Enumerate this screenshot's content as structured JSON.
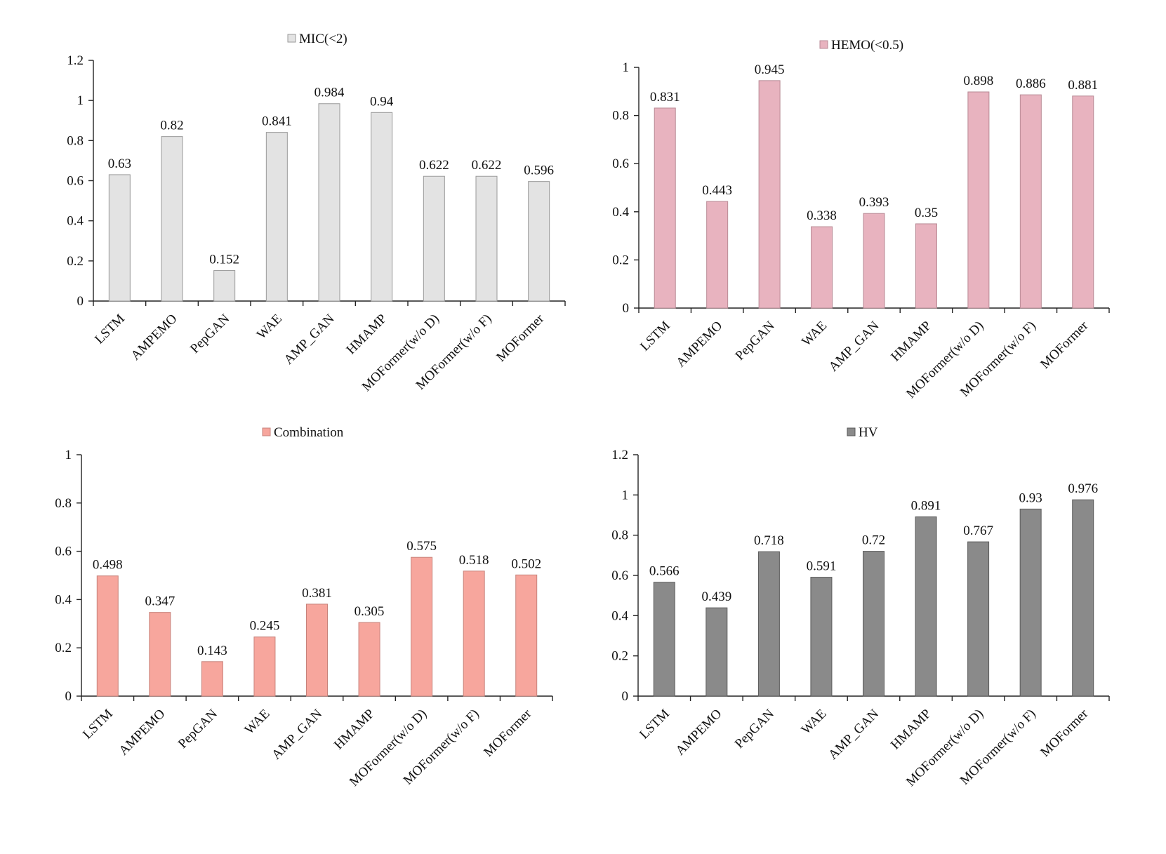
{
  "chart_data": [
    {
      "type": "bar",
      "title": "",
      "legend": "MIC(<2)",
      "legend_placement": "top-center",
      "color": "#e3e3e3",
      "edge_color": "#9a9a9a",
      "categories": [
        "LSTM",
        "AMPEMO",
        "PepGAN",
        "WAE",
        "AMP_GAN",
        "HMAMP",
        "MOFormer(w/o D)",
        "MOFormer(w/o F)",
        "MOFormer"
      ],
      "values": [
        0.63,
        0.82,
        0.152,
        0.841,
        0.984,
        0.94,
        0.622,
        0.622,
        0.596
      ],
      "value_labels": [
        "0.63",
        "0.82",
        "0.152",
        "0.841",
        "0.984",
        "0.94",
        "0.622",
        "0.622",
        "0.596"
      ],
      "ylim": [
        0,
        1.2
      ],
      "yticks": [
        "0",
        "0.2",
        "0.4",
        "0.6",
        "0.8",
        "1",
        "1.2"
      ],
      "xlabel": "",
      "ylabel": "",
      "grid": false
    },
    {
      "type": "bar",
      "title": "",
      "legend": "HEMO(<0.5)",
      "legend_placement": "top-center",
      "color": "#e8b3bf",
      "edge_color": "#b88a95",
      "categories": [
        "LSTM",
        "AMPEMO",
        "PepGAN",
        "WAE",
        "AMP_GAN",
        "HMAMP",
        "MOFormer(w/o D)",
        "MOFormer(w/o F)",
        "MOFormer"
      ],
      "values": [
        0.831,
        0.443,
        0.945,
        0.338,
        0.393,
        0.35,
        0.898,
        0.886,
        0.881
      ],
      "value_labels": [
        "0.831",
        "0.443",
        "0.945",
        "0.338",
        "0.393",
        "0.35",
        "0.898",
        "0.886",
        "0.881"
      ],
      "ylim": [
        0,
        1
      ],
      "yticks": [
        "0",
        "0.2",
        "0.4",
        "0.6",
        "0.8",
        "1"
      ],
      "xlabel": "",
      "ylabel": "",
      "grid": false
    },
    {
      "type": "bar",
      "title": "",
      "legend": "Combination",
      "legend_placement": "top-center",
      "color": "#f7a69d",
      "edge_color": "#c7837b",
      "categories": [
        "LSTM",
        "AMPEMO",
        "PepGAN",
        "WAE",
        "AMP_GAN",
        "HMAMP",
        "MOFormer(w/o D)",
        "MOFormer(w/o F)",
        "MOFormer"
      ],
      "values": [
        0.498,
        0.347,
        0.143,
        0.245,
        0.381,
        0.305,
        0.575,
        0.518,
        0.502
      ],
      "value_labels": [
        "0.498",
        "0.347",
        "0.143",
        "0.245",
        "0.381",
        "0.305",
        "0.575",
        "0.518",
        "0.502"
      ],
      "ylim": [
        0,
        1
      ],
      "yticks": [
        "0",
        "0.2",
        "0.4",
        "0.6",
        "0.8",
        "1"
      ],
      "xlabel": "",
      "ylabel": "",
      "grid": false
    },
    {
      "type": "bar",
      "title": "",
      "legend": "HV",
      "legend_placement": "top-center",
      "color": "#8a8a8a",
      "edge_color": "#5a5a5a",
      "categories": [
        "LSTM",
        "AMPEMO",
        "PepGAN",
        "WAE",
        "AMP_GAN",
        "HMAMP",
        "MOFormer(w/o D)",
        "MOFormer(w/o F)",
        "MOFormer"
      ],
      "values": [
        0.566,
        0.439,
        0.718,
        0.591,
        0.72,
        0.891,
        0.767,
        0.93,
        0.976
      ],
      "value_labels": [
        "0.566",
        "0.439",
        "0.718",
        "0.591",
        "0.72",
        "0.891",
        "0.767",
        "0.93",
        "0.976"
      ],
      "ylim": [
        0,
        1.2
      ],
      "yticks": [
        "0",
        "0.2",
        "0.4",
        "0.6",
        "0.8",
        "1",
        "1.2"
      ],
      "xlabel": "",
      "ylabel": "",
      "grid": false
    }
  ]
}
